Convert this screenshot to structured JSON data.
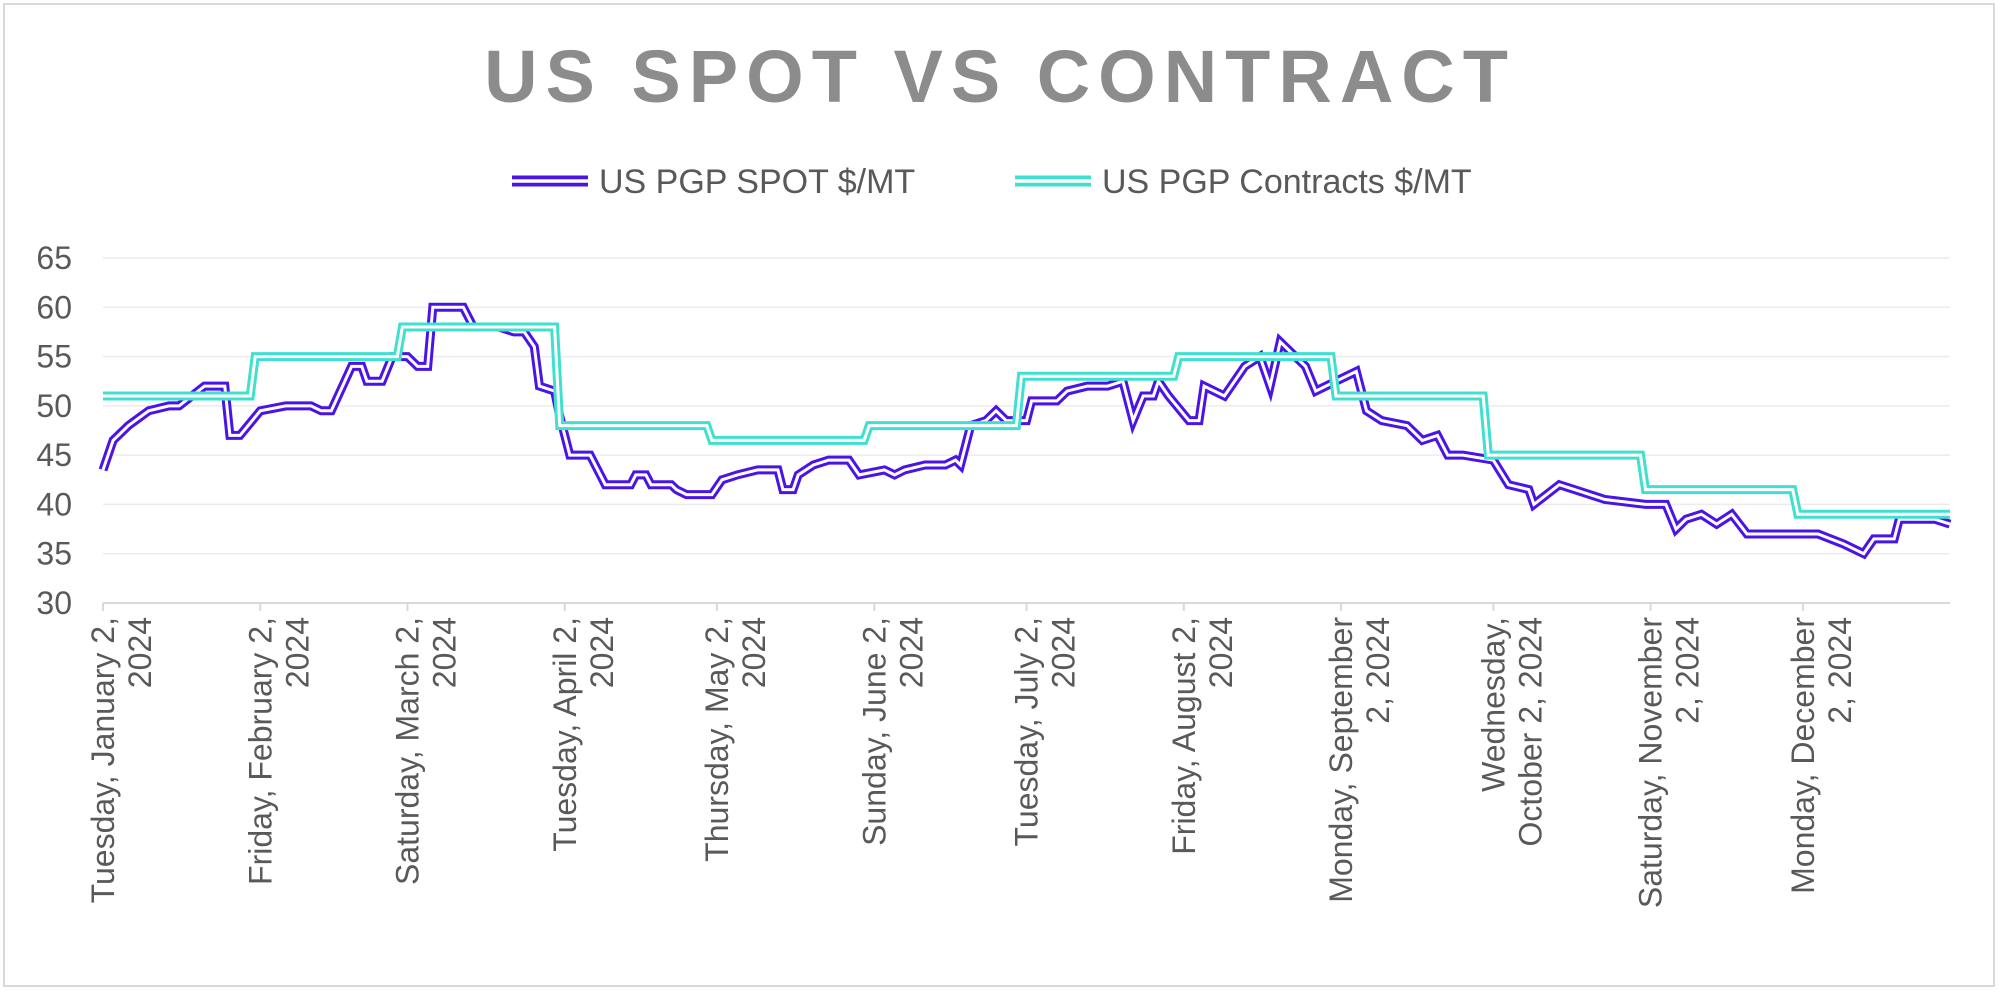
{
  "chart_data": {
    "type": "line",
    "title": "US SPOT VS CONTRACT",
    "xlabel": "",
    "ylabel": "",
    "ylim": [
      30,
      65
    ],
    "yticks": [
      "30",
      "35",
      "40",
      "45",
      "50",
      "55",
      "60",
      "65"
    ],
    "xlim": [
      "2024-01-02",
      "2024-12-31"
    ],
    "xticks": [
      {
        "date": "2024-01-02",
        "lines": [
          "Tuesday, January 2,",
          "2024"
        ]
      },
      {
        "date": "2024-02-02",
        "lines": [
          "Friday, February 2,",
          "2024"
        ]
      },
      {
        "date": "2024-03-02",
        "lines": [
          "Saturday, March 2,",
          "2024"
        ]
      },
      {
        "date": "2024-04-02",
        "lines": [
          "Tuesday, April 2,",
          "2024"
        ]
      },
      {
        "date": "2024-05-02",
        "lines": [
          "Thursday, May 2,",
          "2024"
        ]
      },
      {
        "date": "2024-06-02",
        "lines": [
          "Sunday, June 2,",
          "2024"
        ]
      },
      {
        "date": "2024-07-02",
        "lines": [
          "Tuesday, July 2,",
          "2024"
        ]
      },
      {
        "date": "2024-08-02",
        "lines": [
          "Friday, August 2,",
          "2024"
        ]
      },
      {
        "date": "2024-09-02",
        "lines": [
          "Monday, September",
          "2, 2024"
        ]
      },
      {
        "date": "2024-10-02",
        "lines": [
          "Wednesday,",
          "October 2, 2024"
        ]
      },
      {
        "date": "2024-11-02",
        "lines": [
          "Saturday, November",
          "2, 2024"
        ]
      },
      {
        "date": "2024-12-02",
        "lines": [
          "Monday, December",
          "2, 2024"
        ]
      }
    ],
    "grid": true,
    "legend": "top-center",
    "series": [
      {
        "name": "US PGP SPOT $/MT",
        "color": "#4b14e6",
        "points": [
          [
            "2024-01-02",
            43.5
          ],
          [
            "2024-01-04",
            46.5
          ],
          [
            "2024-01-07",
            48
          ],
          [
            "2024-01-11",
            49.5
          ],
          [
            "2024-01-15",
            50
          ],
          [
            "2024-01-17",
            50
          ],
          [
            "2024-01-22",
            52
          ],
          [
            "2024-01-26",
            52
          ],
          [
            "2024-01-27",
            47
          ],
          [
            "2024-01-29",
            47
          ],
          [
            "2024-02-02",
            49.5
          ],
          [
            "2024-02-07",
            50
          ],
          [
            "2024-02-12",
            50
          ],
          [
            "2024-02-14",
            49.5
          ],
          [
            "2024-02-16",
            49.5
          ],
          [
            "2024-02-20",
            54
          ],
          [
            "2024-02-22",
            54
          ],
          [
            "2024-02-23",
            52.5
          ],
          [
            "2024-02-26",
            52.5
          ],
          [
            "2024-02-28",
            55
          ],
          [
            "2024-03-02",
            55
          ],
          [
            "2024-03-04",
            54
          ],
          [
            "2024-03-06",
            54
          ],
          [
            "2024-03-07",
            60
          ],
          [
            "2024-03-13",
            60
          ],
          [
            "2024-03-15",
            58
          ],
          [
            "2024-03-20",
            58
          ],
          [
            "2024-03-23",
            57.5
          ],
          [
            "2024-03-25",
            57.5
          ],
          [
            "2024-03-27",
            56
          ],
          [
            "2024-03-28",
            52
          ],
          [
            "2024-03-31",
            51.5
          ],
          [
            "2024-04-01",
            49
          ],
          [
            "2024-04-03",
            45
          ],
          [
            "2024-04-07",
            45
          ],
          [
            "2024-04-10",
            42
          ],
          [
            "2024-04-15",
            42
          ],
          [
            "2024-04-16",
            43
          ],
          [
            "2024-04-18",
            43
          ],
          [
            "2024-04-19",
            42
          ],
          [
            "2024-04-23",
            42
          ],
          [
            "2024-04-24",
            41.5
          ],
          [
            "2024-04-26",
            41
          ],
          [
            "2024-05-01",
            41
          ],
          [
            "2024-05-03",
            42.5
          ],
          [
            "2024-05-06",
            43
          ],
          [
            "2024-05-10",
            43.5
          ],
          [
            "2024-05-14",
            43.5
          ],
          [
            "2024-05-15",
            41.5
          ],
          [
            "2024-05-17",
            41.5
          ],
          [
            "2024-05-18",
            43
          ],
          [
            "2024-05-21",
            44
          ],
          [
            "2024-05-24",
            44.5
          ],
          [
            "2024-05-28",
            44.5
          ],
          [
            "2024-05-30",
            43
          ],
          [
            "2024-06-04",
            43.5
          ],
          [
            "2024-06-06",
            43
          ],
          [
            "2024-06-08",
            43.5
          ],
          [
            "2024-06-12",
            44
          ],
          [
            "2024-06-16",
            44
          ],
          [
            "2024-06-18",
            44.5
          ],
          [
            "2024-06-19",
            44
          ],
          [
            "2024-06-21",
            48
          ],
          [
            "2024-06-24",
            48.5
          ],
          [
            "2024-06-26",
            49.5
          ],
          [
            "2024-06-28",
            48.5
          ],
          [
            "2024-07-01",
            48.5
          ],
          [
            "2024-07-02",
            48.5
          ],
          [
            "2024-07-03",
            50.5
          ],
          [
            "2024-07-08",
            50.5
          ],
          [
            "2024-07-10",
            51.5
          ],
          [
            "2024-07-14",
            52
          ],
          [
            "2024-07-18",
            52
          ],
          [
            "2024-07-21",
            52.5
          ],
          [
            "2024-07-23",
            48.5
          ],
          [
            "2024-07-25",
            51
          ],
          [
            "2024-07-27",
            51
          ],
          [
            "2024-07-28",
            52.5
          ],
          [
            "2024-07-30",
            51
          ],
          [
            "2024-08-03",
            48.5
          ],
          [
            "2024-08-05",
            48.5
          ],
          [
            "2024-08-06",
            52
          ],
          [
            "2024-08-10",
            51
          ],
          [
            "2024-08-14",
            54
          ],
          [
            "2024-08-17",
            55
          ],
          [
            "2024-08-19",
            52
          ],
          [
            "2024-08-21",
            56.5
          ],
          [
            "2024-08-24",
            55
          ],
          [
            "2024-08-26",
            54
          ],
          [
            "2024-08-28",
            51.5
          ],
          [
            "2024-09-01",
            52.5
          ],
          [
            "2024-09-05",
            53.5
          ],
          [
            "2024-09-07",
            49.5
          ],
          [
            "2024-09-10",
            48.5
          ],
          [
            "2024-09-15",
            48
          ],
          [
            "2024-09-18",
            46.5
          ],
          [
            "2024-09-21",
            47
          ],
          [
            "2024-09-23",
            45
          ],
          [
            "2024-09-26",
            45
          ],
          [
            "2024-10-02",
            44.5
          ],
          [
            "2024-10-05",
            42
          ],
          [
            "2024-10-09",
            41.5
          ],
          [
            "2024-10-10",
            40
          ],
          [
            "2024-10-15",
            42
          ],
          [
            "2024-10-18",
            41.5
          ],
          [
            "2024-10-24",
            40.5
          ],
          [
            "2024-11-01",
            40
          ],
          [
            "2024-11-05",
            40
          ],
          [
            "2024-11-07",
            37.5
          ],
          [
            "2024-11-09",
            38.5
          ],
          [
            "2024-11-12",
            39
          ],
          [
            "2024-11-15",
            38
          ],
          [
            "2024-11-18",
            39
          ],
          [
            "2024-11-21",
            37
          ],
          [
            "2024-11-26",
            37
          ],
          [
            "2024-12-01",
            37
          ],
          [
            "2024-12-05",
            37
          ],
          [
            "2024-12-10",
            36
          ],
          [
            "2024-12-12",
            35.5
          ],
          [
            "2024-12-14",
            35
          ],
          [
            "2024-12-16",
            36.5
          ],
          [
            "2024-12-20",
            36.5
          ],
          [
            "2024-12-21",
            38.5
          ],
          [
            "2024-12-28",
            38.5
          ],
          [
            "2024-12-31",
            38
          ]
        ]
      },
      {
        "name": "US PGP Contracts $/MT",
        "color": "#40e0d0",
        "points": [
          [
            "2024-01-02",
            51
          ],
          [
            "2024-01-31",
            51
          ],
          [
            "2024-02-01",
            55
          ],
          [
            "2024-02-29",
            55
          ],
          [
            "2024-03-01",
            58
          ],
          [
            "2024-03-31",
            58
          ],
          [
            "2024-04-01",
            48
          ],
          [
            "2024-04-30",
            48
          ],
          [
            "2024-05-01",
            46.5
          ],
          [
            "2024-05-31",
            46.5
          ],
          [
            "2024-06-01",
            48
          ],
          [
            "2024-06-30",
            48
          ],
          [
            "2024-07-01",
            53
          ],
          [
            "2024-07-31",
            53
          ],
          [
            "2024-08-01",
            55
          ],
          [
            "2024-08-31",
            55
          ],
          [
            "2024-09-01",
            51
          ],
          [
            "2024-09-30",
            51
          ],
          [
            "2024-10-01",
            45
          ],
          [
            "2024-10-31",
            45
          ],
          [
            "2024-11-01",
            41.5
          ],
          [
            "2024-11-30",
            41.5
          ],
          [
            "2024-12-01",
            39
          ],
          [
            "2024-12-31",
            39
          ]
        ]
      }
    ]
  }
}
